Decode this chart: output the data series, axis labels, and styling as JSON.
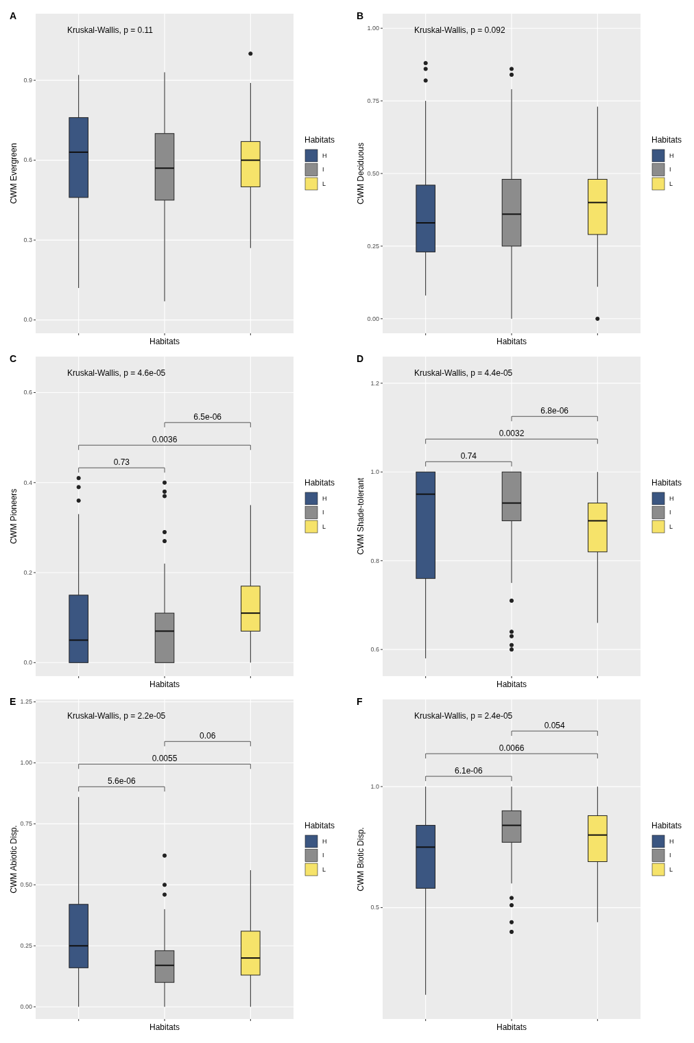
{
  "chart_data": [
    {
      "type": "box",
      "title": "A",
      "xlabel": "Habitats",
      "ylabel": "CWM Evergreen",
      "legend_title": "Habitats",
      "legend": "right",
      "grid": true,
      "categories": [
        null,
        null,
        null
      ],
      "ylim": [
        -0.05,
        1.15
      ],
      "yticks": [
        {
          "value": 0,
          "label": "0.0"
        },
        0.3,
        0.6,
        0.9
      ],
      "annotations": [
        "Kruskal-Wallis, p = 0.11"
      ],
      "series": [
        {
          "name": "H",
          "color": "#3b5681",
          "boxes": [
            {
              "low": 0.12,
              "q1": 0.46,
              "median": 0.63,
              "q3": 0.76,
              "high": 0.92
            },
            null,
            null
          ]
        },
        {
          "name": "I",
          "color": "#8c8c8c",
          "boxes": [
            null,
            {
              "low": 0.07,
              "q1": 0.45,
              "median": 0.57,
              "q3": 0.7,
              "high": 0.93
            },
            null
          ]
        },
        {
          "name": "L",
          "color": "#f6e36a",
          "boxes": [
            null,
            null,
            {
              "low": 0.27,
              "q1": 0.5,
              "median": 0.6,
              "q3": 0.67,
              "high": 0.89,
              "outliers": [
                1.0
              ]
            }
          ]
        }
      ]
    },
    {
      "type": "box",
      "title": "B",
      "xlabel": "Habitats",
      "ylabel": "CWM Deciduous",
      "legend_title": "Habitats",
      "legend": "right",
      "grid": true,
      "categories": [
        null,
        null,
        null
      ],
      "ylim": [
        -0.05,
        1.05
      ],
      "yticks": [
        {
          "value": 0,
          "label": "0.00"
        },
        0.25,
        {
          "value": 0.5,
          "label": "0.50"
        },
        0.75,
        {
          "value": 1,
          "label": "1.00"
        }
      ],
      "annotations": [
        "Kruskal-Wallis, p = 0.092"
      ],
      "series": [
        {
          "name": "H",
          "color": "#3b5681",
          "boxes": [
            {
              "low": 0.08,
              "q1": 0.23,
              "median": 0.33,
              "q3": 0.46,
              "high": 0.75,
              "outliers": [
                0.82,
                0.86,
                0.88
              ]
            },
            null,
            null
          ]
        },
        {
          "name": "I",
          "color": "#8c8c8c",
          "boxes": [
            null,
            {
              "low": 0.0,
              "q1": 0.25,
              "median": 0.36,
              "q3": 0.48,
              "high": 0.79,
              "outliers": [
                0.84,
                0.86
              ]
            },
            null
          ]
        },
        {
          "name": "L",
          "color": "#f6e36a",
          "boxes": [
            null,
            null,
            {
              "low": 0.11,
              "q1": 0.29,
              "median": 0.4,
              "q3": 0.48,
              "high": 0.73,
              "outliers": [
                0.0
              ]
            }
          ]
        }
      ]
    },
    {
      "type": "box",
      "title": "C",
      "xlabel": "Habitats",
      "ylabel": "CWM Pioneers",
      "legend_title": "Habitats",
      "legend": "right",
      "grid": true,
      "categories": [
        null,
        null,
        null
      ],
      "ylim": [
        -0.03,
        0.68
      ],
      "yticks": [
        {
          "value": 0,
          "label": "0.0"
        },
        0.2,
        0.4,
        0.6
      ],
      "annotations": [
        "Kruskal-Wallis, p = 4.6e-05",
        "6.5e-06",
        "0.0036",
        "0.73"
      ],
      "series": [
        {
          "name": "H",
          "color": "#3b5681",
          "boxes": [
            {
              "low": 0.0,
              "q1": 0.0,
              "median": 0.05,
              "q3": 0.15,
              "high": 0.33,
              "outliers": [
                0.36,
                0.39,
                0.41
              ]
            },
            null,
            null
          ]
        },
        {
          "name": "I",
          "color": "#8c8c8c",
          "boxes": [
            null,
            {
              "low": 0.0,
              "q1": 0.0,
              "median": 0.07,
              "q3": 0.11,
              "high": 0.22,
              "outliers": [
                0.27,
                0.29,
                0.37,
                0.38,
                0.4
              ]
            },
            null
          ]
        },
        {
          "name": "L",
          "color": "#f6e36a",
          "boxes": [
            null,
            null,
            {
              "low": 0.0,
              "q1": 0.07,
              "median": 0.11,
              "q3": 0.17,
              "high": 0.35
            }
          ]
        }
      ]
    },
    {
      "type": "box",
      "title": "D",
      "xlabel": "Habitats",
      "ylabel": "CWM Shade-tolerant",
      "legend_title": "Habitats",
      "legend": "right",
      "grid": true,
      "categories": [
        null,
        null,
        null
      ],
      "ylim": [
        0.54,
        1.26
      ],
      "yticks": [
        0.6,
        0.8,
        {
          "value": 1,
          "label": "1.0"
        },
        1.2
      ],
      "annotations": [
        "Kruskal-Wallis, p = 4.4e-05",
        "6.8e-06",
        "0.0032",
        "0.74"
      ],
      "series": [
        {
          "name": "H",
          "color": "#3b5681",
          "boxes": [
            {
              "low": 0.58,
              "q1": 0.76,
              "median": 0.95,
              "q3": 1.0,
              "high": 1.0
            },
            null,
            null
          ]
        },
        {
          "name": "I",
          "color": "#8c8c8c",
          "boxes": [
            null,
            {
              "low": 0.75,
              "q1": 0.89,
              "median": 0.93,
              "q3": 1.0,
              "high": 1.0,
              "outliers": [
                0.6,
                0.61,
                0.63,
                0.64,
                0.71
              ]
            },
            null
          ]
        },
        {
          "name": "L",
          "color": "#f6e36a",
          "boxes": [
            null,
            null,
            {
              "low": 0.66,
              "q1": 0.82,
              "median": 0.89,
              "q3": 0.93,
              "high": 1.0
            }
          ]
        }
      ]
    },
    {
      "type": "box",
      "title": "E",
      "xlabel": "Habitats",
      "ylabel": "CWM Abiotic Disp.",
      "legend_title": "Habitats",
      "legend": "right",
      "grid": true,
      "categories": [
        null,
        null,
        null
      ],
      "ylim": [
        -0.05,
        1.26
      ],
      "yticks": [
        {
          "value": 0,
          "label": "0.00"
        },
        0.25,
        {
          "value": 0.5,
          "label": "0.50"
        },
        0.75,
        {
          "value": 1,
          "label": "1.00"
        },
        1.25
      ],
      "annotations": [
        "Kruskal-Wallis, p = 2.2e-05",
        "0.06",
        "0.0055",
        "5.6e-06"
      ],
      "series": [
        {
          "name": "H",
          "color": "#3b5681",
          "boxes": [
            {
              "low": 0.0,
              "q1": 0.16,
              "median": 0.25,
              "q3": 0.42,
              "high": 0.86
            },
            null,
            null
          ]
        },
        {
          "name": "I",
          "color": "#8c8c8c",
          "boxes": [
            null,
            {
              "low": 0.0,
              "q1": 0.1,
              "median": 0.17,
              "q3": 0.23,
              "high": 0.4,
              "outliers": [
                0.46,
                0.5,
                0.62
              ]
            },
            null
          ]
        },
        {
          "name": "L",
          "color": "#f6e36a",
          "boxes": [
            null,
            null,
            {
              "low": 0.0,
              "q1": 0.13,
              "median": 0.2,
              "q3": 0.31,
              "high": 0.56
            }
          ]
        }
      ]
    },
    {
      "type": "box",
      "title": "F",
      "xlabel": "Habitats",
      "ylabel": "CWM Biotic Disp.",
      "legend_title": "Habitats",
      "legend": "right",
      "grid": true,
      "categories": [
        null,
        null,
        null
      ],
      "ylim": [
        0.04,
        1.36
      ],
      "yticks": [
        0.5,
        {
          "value": 1,
          "label": "1.0"
        }
      ],
      "annotations": [
        "Kruskal-Wallis, p = 2.4e-05",
        "0.054",
        "0.0066",
        "6.1e-06"
      ],
      "series": [
        {
          "name": "H",
          "color": "#3b5681",
          "boxes": [
            {
              "low": 0.14,
              "q1": 0.58,
              "median": 0.75,
              "q3": 0.84,
              "high": 1.0
            },
            null,
            null
          ]
        },
        {
          "name": "I",
          "color": "#8c8c8c",
          "boxes": [
            null,
            {
              "low": 0.6,
              "q1": 0.77,
              "median": 0.84,
              "q3": 0.9,
              "high": 1.0,
              "outliers": [
                0.4,
                0.44,
                0.51,
                0.54
              ]
            },
            null
          ]
        },
        {
          "name": "L",
          "color": "#f6e36a",
          "boxes": [
            null,
            null,
            {
              "low": 0.44,
              "q1": 0.69,
              "median": 0.8,
              "q3": 0.88,
              "high": 1.0
            }
          ]
        }
      ]
    }
  ]
}
